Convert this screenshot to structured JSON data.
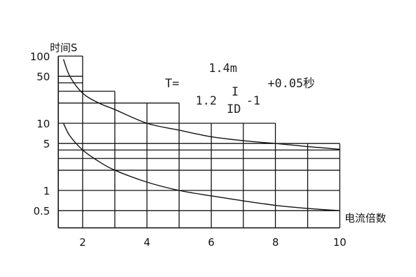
{
  "chart_data": {
    "type": "line",
    "title": "",
    "ylabel": "时间S",
    "xlabel": "电流倍数",
    "y_scale": "log",
    "xlim": [
      1.24,
      10
    ],
    "ylim": [
      0.3,
      100
    ],
    "x_ticks": [
      2,
      4,
      6,
      8,
      10
    ],
    "x_tick_labels": [
      "2",
      "4",
      "6",
      "8",
      "10"
    ],
    "y_ticks": [
      100,
      50,
      10,
      5,
      1,
      0.5
    ],
    "y_tick_labels": [
      "100",
      "50",
      "10",
      "5",
      "1",
      "0.5"
    ],
    "grid": true,
    "horizontal_grid": [
      {
        "y": 100,
        "x_to": 2
      },
      {
        "y": 50,
        "x_to": 2
      },
      {
        "y": 40,
        "x_to": 2
      },
      {
        "y": 30,
        "x_to": 3
      },
      {
        "y": 20,
        "x_to": 5
      },
      {
        "y": 10,
        "x_to": 8
      },
      {
        "y": 5,
        "x_to": 10
      },
      {
        "y": 4,
        "x_to": 10
      },
      {
        "y": 3,
        "x_to": 10
      },
      {
        "y": 2,
        "x_to": 10
      },
      {
        "y": 1,
        "x_to": 10
      },
      {
        "y": 0.5,
        "x_to": 10
      }
    ],
    "vertical_grid": [
      {
        "x": 2,
        "y_to": 100
      },
      {
        "x": 3,
        "y_to": 30
      },
      {
        "x": 4,
        "y_to": 20
      },
      {
        "x": 5,
        "y_to": 20
      },
      {
        "x": 6,
        "y_to": 10
      },
      {
        "x": 7,
        "y_to": 10
      },
      {
        "x": 8,
        "y_to": 10
      },
      {
        "x": 9,
        "y_to": 5
      },
      {
        "x": 10,
        "y_to": 5
      }
    ],
    "series": [
      {
        "x": [
          1.4,
          1.6,
          2,
          2.5,
          3,
          4,
          5,
          6,
          7,
          8,
          9,
          10
        ],
        "y": [
          90,
          50,
          28,
          20,
          16,
          10,
          7.9,
          6.3,
          5.5,
          5.0,
          4.5,
          4.1
        ]
      },
      {
        "x": [
          1.4,
          1.6,
          2,
          2.5,
          3,
          4,
          5,
          6,
          7,
          8,
          9,
          10
        ],
        "y": [
          10,
          6.5,
          4,
          2.7,
          2,
          1.33,
          1.0,
          0.83,
          0.7,
          0.6,
          0.54,
          0.5
        ]
      }
    ],
    "formula": {
      "lhs": "T=",
      "numerator": "1.4m",
      "denominator_coef": "1.2",
      "fraction_top": "I",
      "fraction_bottom": "ID",
      "denominator_tail": "-1",
      "suffix": "+0.05秒"
    },
    "line_color": "#111111"
  }
}
